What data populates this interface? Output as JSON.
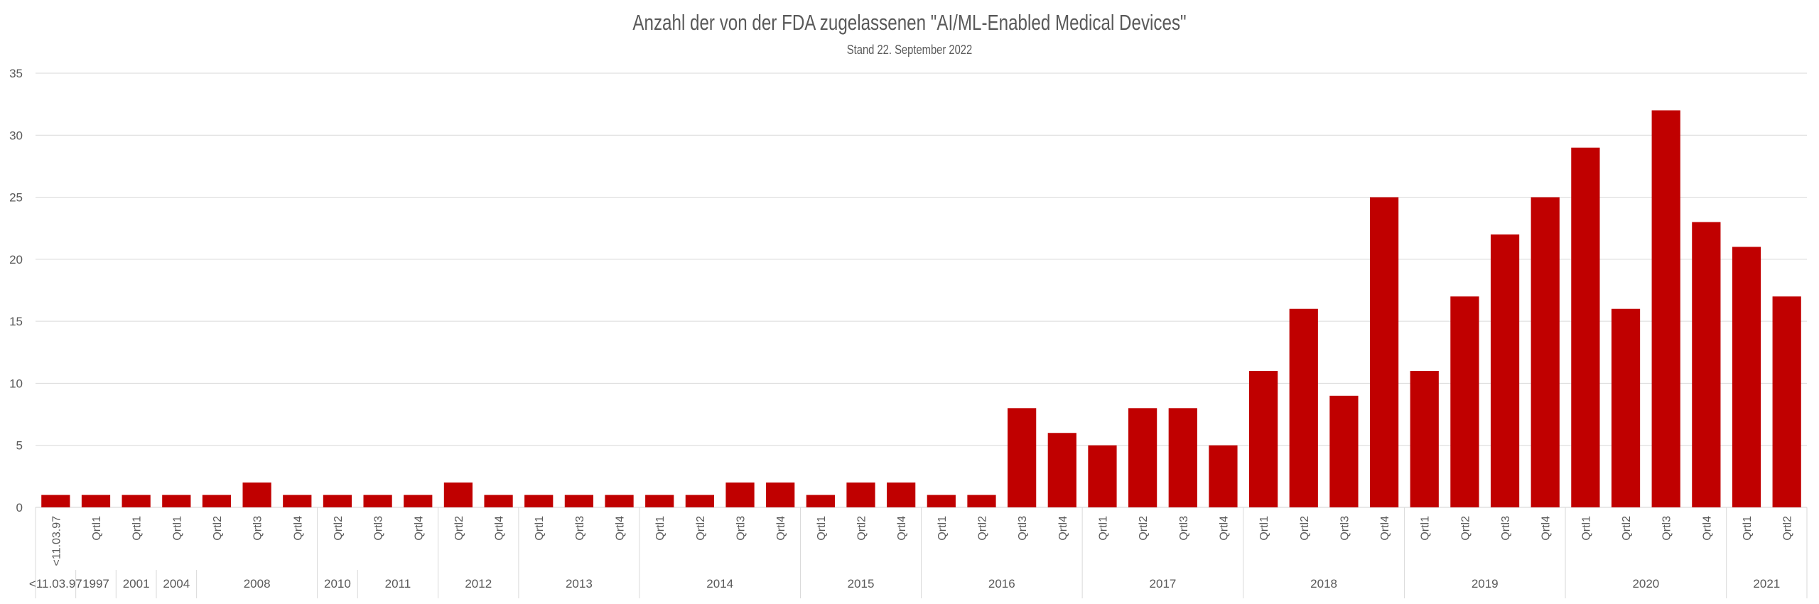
{
  "chart_data": {
    "type": "bar",
    "title": "Anzahl der von der FDA zugelassenen \"AI/ML-Enabled Medical Devices\"",
    "subtitle": "Stand 22. September 2022",
    "xlabel": "",
    "ylabel": "",
    "ylim": [
      0,
      35
    ],
    "yticks": [
      0,
      5,
      10,
      15,
      20,
      25,
      30,
      35
    ],
    "grid": true,
    "legend": "none",
    "bar_color": "#c00000",
    "categories": [
      "<11.03.97",
      "Qrtl1",
      "Qrtl1",
      "Qrtl1",
      "Qrtl2",
      "Qrtl3",
      "Qrtl4",
      "Qrtl2",
      "Qrtl3",
      "Qrtl4",
      "Qrtl2",
      "Qrtl4",
      "Qrtl1",
      "Qrtl3",
      "Qrtl4",
      "Qrtl1",
      "Qrtl2",
      "Qrtl3",
      "Qrtl4",
      "Qrtl1",
      "Qrtl2",
      "Qrtl4",
      "Qrtl1",
      "Qrtl2",
      "Qrtl3",
      "Qrtl4",
      "Qrtl1",
      "Qrtl2",
      "Qrtl3",
      "Qrtl4",
      "Qrtl1",
      "Qrtl2",
      "Qrtl3",
      "Qrtl4",
      "Qrtl1",
      "Qrtl2",
      "Qrtl3",
      "Qrtl4",
      "Qrtl1",
      "Qrtl2",
      "Qrtl3",
      "Qrtl4",
      "Qrtl1",
      "Qrtl2"
    ],
    "values": [
      1,
      1,
      1,
      1,
      1,
      2,
      1,
      1,
      1,
      1,
      2,
      1,
      1,
      1,
      1,
      1,
      1,
      2,
      2,
      1,
      2,
      2,
      1,
      1,
      8,
      6,
      5,
      8,
      8,
      5,
      11,
      16,
      9,
      25,
      11,
      17,
      22,
      25,
      29,
      16,
      32,
      23,
      21,
      17
    ],
    "groups": [
      {
        "label": "<11.03.97",
        "count": 1
      },
      {
        "label": "1997",
        "count": 1
      },
      {
        "label": "2001",
        "count": 1
      },
      {
        "label": "2004",
        "count": 1
      },
      {
        "label": "2008",
        "count": 3
      },
      {
        "label": "2010",
        "count": 1
      },
      {
        "label": "2011",
        "count": 2
      },
      {
        "label": "2012",
        "count": 2
      },
      {
        "label": "2013",
        "count": 3
      },
      {
        "label": "2014",
        "count": 4
      },
      {
        "label": "2015",
        "count": 3
      },
      {
        "label": "2016",
        "count": 4
      },
      {
        "label": "2017",
        "count": 4
      },
      {
        "label": "2018",
        "count": 4
      },
      {
        "label": "2019",
        "count": 4
      },
      {
        "label": "2020",
        "count": 4
      },
      {
        "label": "2021",
        "count": 2
      }
    ]
  }
}
